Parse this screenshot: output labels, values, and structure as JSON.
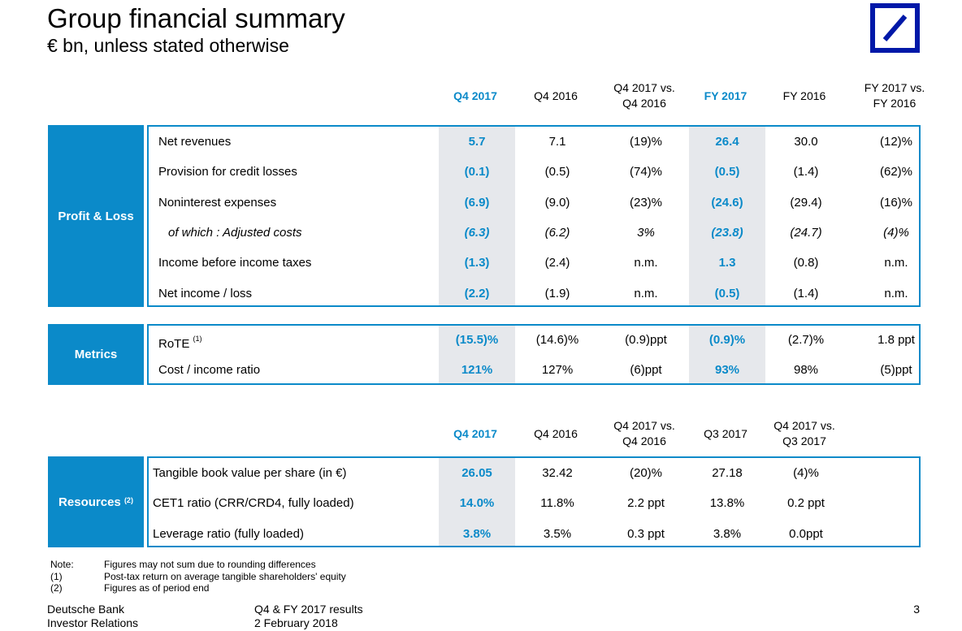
{
  "title": "Group financial summary",
  "subtitle": "€ bn, unless stated otherwise",
  "logo_icon": "deutsche-bank-logo-icon",
  "pl_headers": [
    "Q4 2017",
    "Q4 2016",
    "Q4 2017 vs.\nQ4 2016",
    "FY 2017",
    "FY 2016",
    "FY 2017 vs.\nFY 2016"
  ],
  "profit_loss": {
    "label": "Profit & Loss",
    "rows": [
      {
        "label": "Net revenues",
        "values": [
          "5.7",
          "7.1",
          "(19)%",
          "26.4",
          "30.0",
          "(12)%"
        ]
      },
      {
        "label": "Provision for credit losses",
        "values": [
          "(0.1)",
          "(0.5)",
          "(74)%",
          "(0.5)",
          "(1.4)",
          "(62)%"
        ]
      },
      {
        "label": "Noninterest expenses",
        "values": [
          "(6.9)",
          "(9.0)",
          "(23)%",
          "(24.6)",
          "(29.4)",
          "(16)%"
        ]
      },
      {
        "label": "of which : Adjusted costs",
        "values": [
          "(6.3)",
          "(6.2)",
          "3%",
          "(23.8)",
          "(24.7)",
          "(4)%"
        ]
      },
      {
        "label": "Income before income taxes",
        "values": [
          "(1.3)",
          "(2.4)",
          "n.m.",
          "1.3",
          "(0.8)",
          "n.m."
        ]
      },
      {
        "label": "Net income / loss",
        "values": [
          "(2.2)",
          "(1.9)",
          "n.m.",
          "(0.5)",
          "(1.4)",
          "n.m."
        ]
      }
    ]
  },
  "metrics": {
    "label": "Metrics",
    "rows": [
      {
        "label": "RoTE",
        "sup": "(1)",
        "values": [
          "(15.5)%",
          "(14.6)%",
          "(0.9)ppt",
          "(0.9)%",
          "(2.7)%",
          "1.8 ppt"
        ]
      },
      {
        "label": "Cost / income ratio",
        "values": [
          "121%",
          "127%",
          "(6)ppt",
          "93%",
          "98%",
          "(5)ppt"
        ]
      }
    ]
  },
  "res_headers": [
    "Q4 2017",
    "Q4 2016",
    "Q4 2017 vs.\nQ4 2016",
    "Q3 2017",
    "Q4 2017 vs.\nQ3 2017"
  ],
  "resources": {
    "label": "Resources",
    "sup": "(2)",
    "rows": [
      {
        "label": "Tangible book value per share (in €)",
        "values": [
          "26.05",
          "32.42",
          "(20)%",
          "27.18",
          "(4)%"
        ]
      },
      {
        "label": "CET1 ratio (CRR/CRD4, fully loaded)",
        "values": [
          "14.0%",
          "11.8%",
          "2.2 ppt",
          "13.8%",
          "0.2 ppt"
        ]
      },
      {
        "label": "Leverage ratio (fully loaded)",
        "values": [
          "3.8%",
          "3.5%",
          "0.3 ppt",
          "3.8%",
          "0.0ppt"
        ]
      }
    ]
  },
  "notes": [
    {
      "key": "Note:",
      "text": "Figures may not sum due to rounding differences"
    },
    {
      "key": "(1)",
      "text": "Post-tax return on average tangible shareholders' equity"
    },
    {
      "key": "(2)",
      "text": "Figures as of period end"
    }
  ],
  "footer": {
    "company": "Deutsche Bank",
    "department": "Investor Relations",
    "doc": "Q4 & FY 2017 results",
    "date": "2 February 2018",
    "page": "3"
  }
}
